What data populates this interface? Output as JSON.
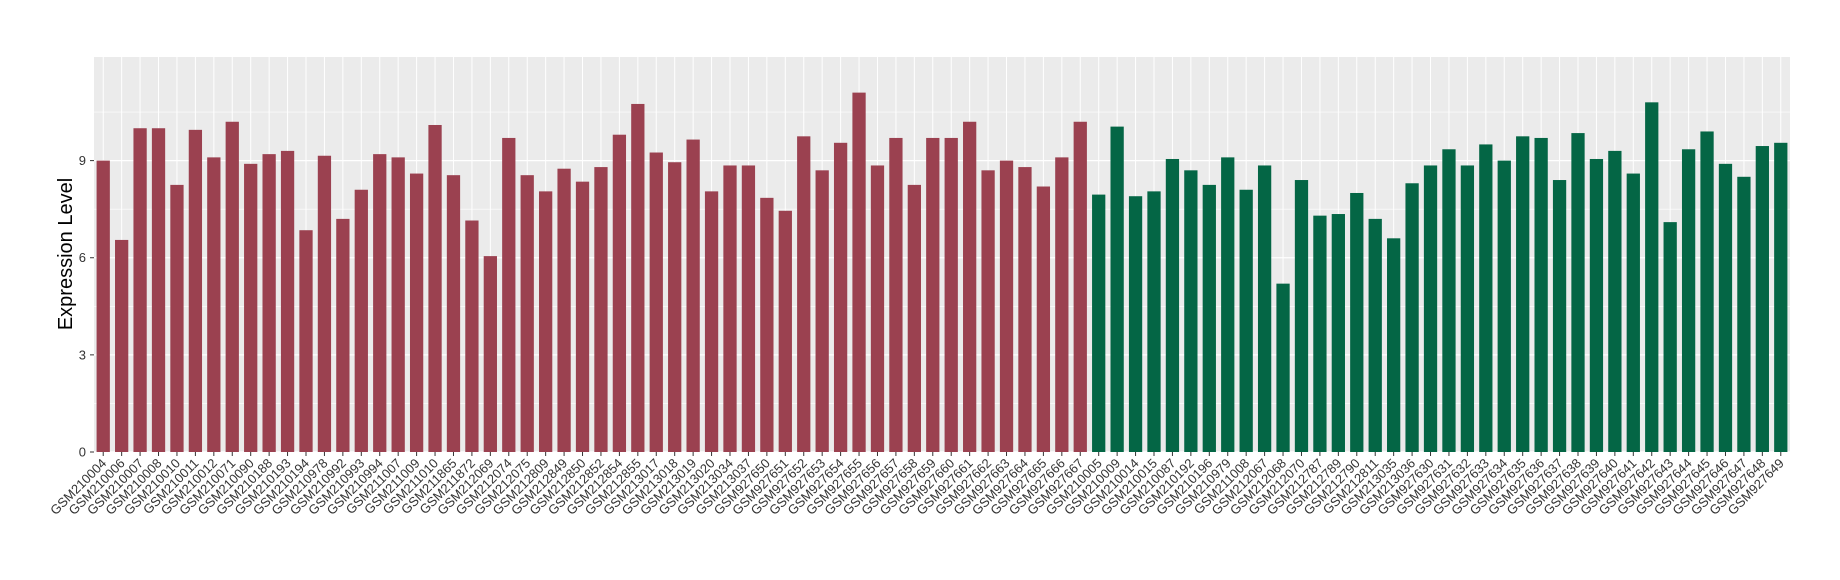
{
  "chart_data": {
    "type": "bar",
    "ylabel": "Expression Level",
    "xlabel": "",
    "title": "",
    "ylim": [
      0,
      12.2
    ],
    "yticks": [
      0,
      3,
      6,
      9
    ],
    "grid": true,
    "legend": "none",
    "colors": {
      "group_1": "#9b4150",
      "group_2": "#046645",
      "panel": "#ebebeb",
      "grid": "#ffffff"
    },
    "group_split_index": 54,
    "categories": [
      "GSM210004",
      "GSM210006",
      "GSM210007",
      "GSM210008",
      "GSM210010",
      "GSM210011",
      "GSM210012",
      "GSM210071",
      "GSM210090",
      "GSM210188",
      "GSM210193",
      "GSM210194",
      "GSM210978",
      "GSM210992",
      "GSM210993",
      "GSM210994",
      "GSM211007",
      "GSM211009",
      "GSM211010",
      "GSM211865",
      "GSM211872",
      "GSM212069",
      "GSM212074",
      "GSM212075",
      "GSM212809",
      "GSM212849",
      "GSM212850",
      "GSM212852",
      "GSM212854",
      "GSM212855",
      "GSM213017",
      "GSM213018",
      "GSM213019",
      "GSM213020",
      "GSM213034",
      "GSM213037",
      "GSM927650",
      "GSM927651",
      "GSM927652",
      "GSM927653",
      "GSM927654",
      "GSM927655",
      "GSM927656",
      "GSM927657",
      "GSM927658",
      "GSM927659",
      "GSM927660",
      "GSM927661",
      "GSM927662",
      "GSM927663",
      "GSM927664",
      "GSM927665",
      "GSM927666",
      "GSM927667",
      "GSM210005",
      "GSM210009",
      "GSM210014",
      "GSM210015",
      "GSM210087",
      "GSM210192",
      "GSM210196",
      "GSM210979",
      "GSM211008",
      "GSM212067",
      "GSM212068",
      "GSM212070",
      "GSM212787",
      "GSM212789",
      "GSM212790",
      "GSM212811",
      "GSM213035",
      "GSM213036",
      "GSM927630",
      "GSM927631",
      "GSM927632",
      "GSM927633",
      "GSM927634",
      "GSM927635",
      "GSM927636",
      "GSM927637",
      "GSM927638",
      "GSM927639",
      "GSM927640",
      "GSM927641",
      "GSM927642",
      "GSM927643",
      "GSM927644",
      "GSM927645",
      "GSM927646",
      "GSM927647",
      "GSM927648",
      "GSM927649"
    ],
    "values": [
      9.0,
      6.55,
      10.0,
      10.0,
      8.25,
      9.95,
      9.1,
      10.2,
      8.9,
      9.2,
      9.3,
      6.85,
      9.15,
      7.2,
      8.1,
      9.2,
      9.1,
      8.6,
      10.1,
      8.55,
      7.15,
      6.05,
      9.7,
      8.55,
      8.05,
      8.75,
      8.35,
      8.8,
      9.8,
      10.75,
      9.25,
      8.95,
      9.65,
      8.05,
      8.85,
      8.85,
      7.85,
      7.45,
      9.75,
      8.7,
      9.55,
      11.1,
      8.85,
      9.7,
      8.25,
      9.7,
      9.7,
      10.2,
      8.7,
      9.0,
      8.8,
      8.2,
      9.1,
      10.2,
      7.95,
      10.05,
      7.9,
      8.05,
      9.05,
      8.7,
      8.25,
      9.1,
      8.1,
      8.85,
      5.2,
      8.4,
      7.3,
      7.35,
      8.0,
      7.2,
      6.6,
      8.3,
      8.85,
      9.35,
      8.85,
      9.5,
      9.0,
      9.75,
      9.7,
      8.4,
      9.85,
      9.05,
      9.3,
      8.6,
      10.8,
      7.1,
      9.35,
      9.9,
      8.9,
      8.5,
      9.45,
      9.55
    ]
  }
}
